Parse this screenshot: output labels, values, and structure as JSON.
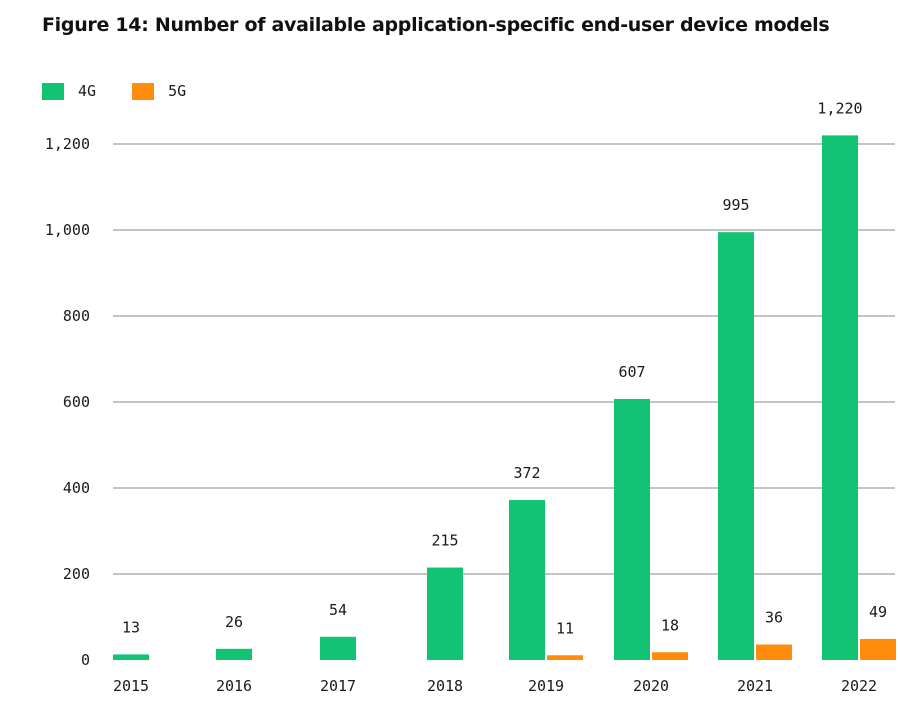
{
  "chart_data": {
    "type": "bar",
    "title": "Figure 14: Number of available application-specific end-user device models",
    "xlabel": "",
    "ylabel": "",
    "ylim": [
      0,
      1250
    ],
    "yticks": [
      0,
      200,
      400,
      600,
      800,
      1000,
      1200
    ],
    "ytick_labels": [
      "0",
      "200",
      "400",
      "600",
      "800",
      "1,000",
      "1,200"
    ],
    "categories": [
      "2015",
      "2016",
      "2017",
      "2018",
      "2019",
      "2020",
      "2021",
      "2022"
    ],
    "series": [
      {
        "name": "4G",
        "color": "#12c373",
        "values": [
          13,
          26,
          54,
          215,
          372,
          607,
          995,
          1220
        ],
        "labels": [
          "13",
          "26",
          "54",
          "215",
          "372",
          "607",
          "995",
          "1,220"
        ]
      },
      {
        "name": "5G",
        "color": "#ff8c0a",
        "values": [
          0,
          0,
          0,
          0,
          11,
          18,
          36,
          49
        ],
        "labels": [
          "",
          "",
          "",
          "",
          "11",
          "18",
          "36",
          "49"
        ]
      }
    ],
    "grid": true,
    "legend": "top-left"
  }
}
